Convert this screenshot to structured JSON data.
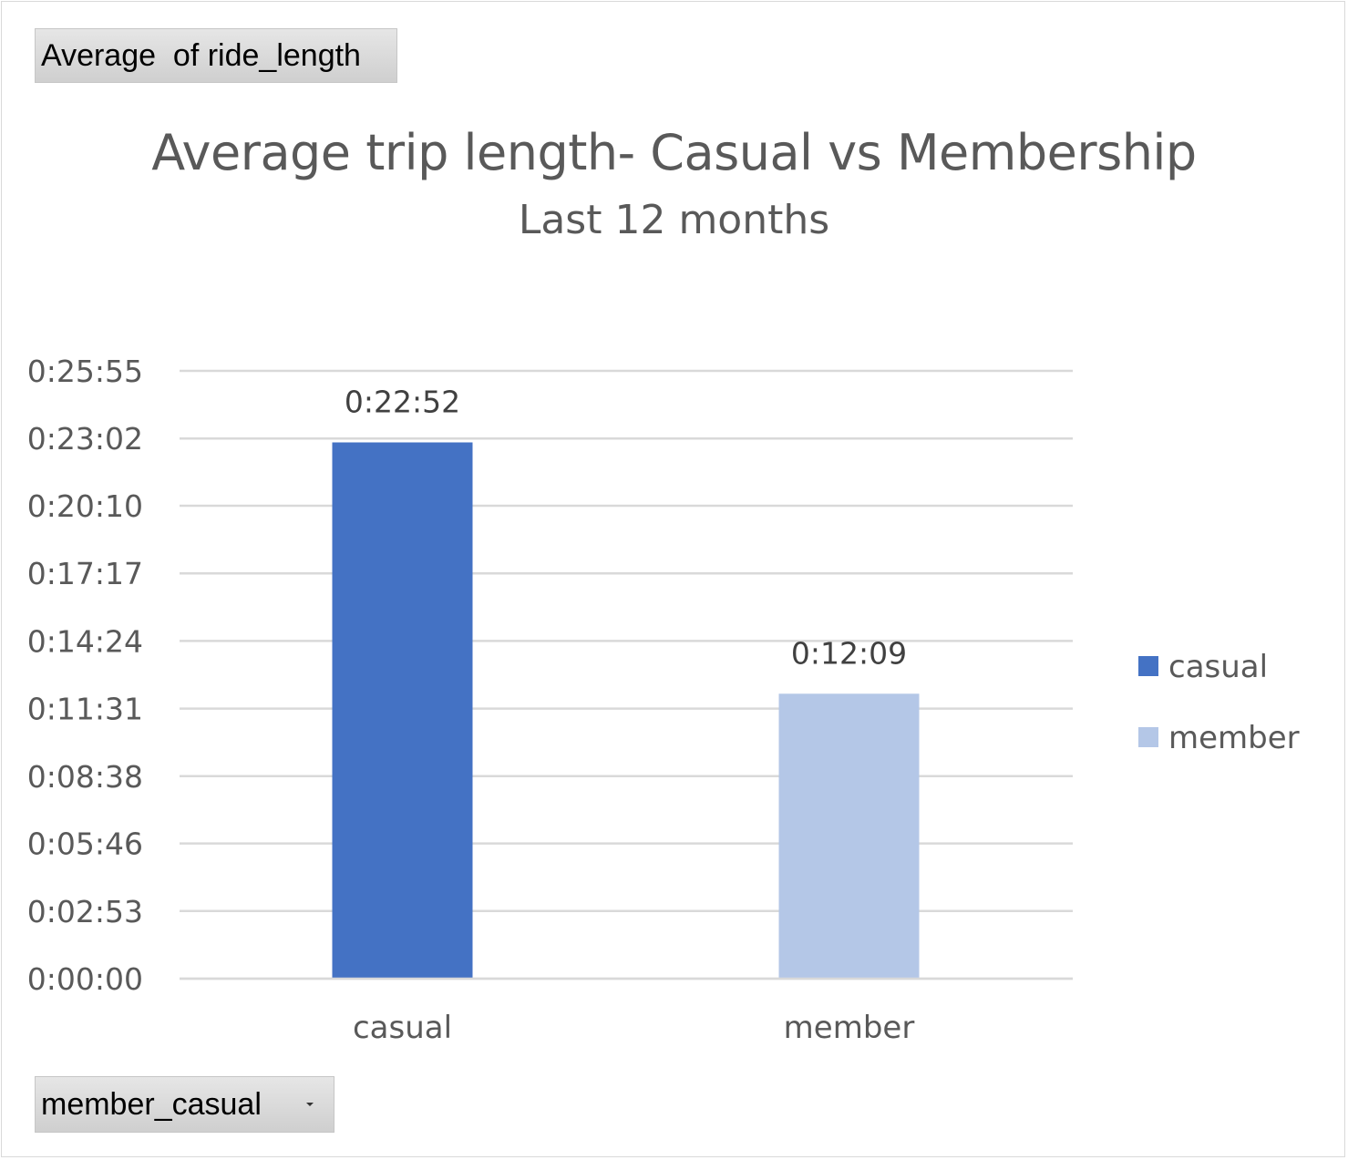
{
  "values_field": {
    "label": "Average  of ride_length"
  },
  "axis_field": {
    "label": "member_casual"
  },
  "colors": {
    "casual": "#4472c4",
    "member": "#b4c7e7",
    "gridline": "#d9d9d9",
    "text": "#595959"
  },
  "chart_data": {
    "type": "bar",
    "title": "Average trip length- Casual vs Membership",
    "subtitle": "Last 12 months",
    "xlabel": "",
    "ylabel": "",
    "categories": [
      "casual",
      "member"
    ],
    "series": [
      {
        "name": "casual",
        "values": [
          "0:22:52",
          "0:12:09"
        ],
        "seconds": [
          1372,
          729
        ]
      }
    ],
    "data_labels": [
      "0:22:52",
      "0:12:09"
    ],
    "y_ticks": [
      "0:00:00",
      "0:02:53",
      "0:05:46",
      "0:08:38",
      "0:11:31",
      "0:14:24",
      "0:17:17",
      "0:20:10",
      "0:23:02",
      "0:25:55"
    ],
    "y_tick_seconds": [
      0,
      173,
      346,
      518,
      691,
      864,
      1037,
      1210,
      1382,
      1555
    ],
    "ylim": [
      "0:00:00",
      "0:25:55"
    ],
    "grid": true,
    "legend": {
      "position": "right",
      "entries": [
        "casual",
        "member"
      ]
    }
  }
}
